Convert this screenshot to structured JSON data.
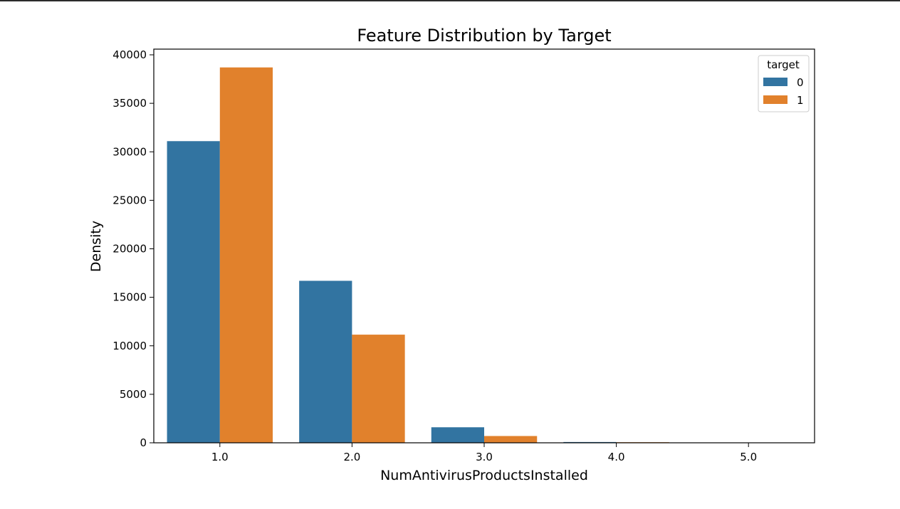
{
  "chart_data": {
    "type": "bar",
    "title": "Feature Distribution by Target",
    "xlabel": "NumAntivirusProductsInstalled",
    "ylabel": "Density",
    "categories": [
      "1.0",
      "2.0",
      "3.0",
      "4.0",
      "5.0"
    ],
    "series": [
      {
        "name": "0",
        "values": [
          31100,
          16700,
          1600,
          80,
          0
        ],
        "color": "#3274a1"
      },
      {
        "name": "1",
        "values": [
          38700,
          11150,
          700,
          60,
          0
        ],
        "color": "#e1812c"
      }
    ],
    "ylim": [
      0,
      40000
    ],
    "yticks": [
      0,
      5000,
      10000,
      15000,
      20000,
      25000,
      30000,
      35000,
      40000
    ],
    "grid": false,
    "legend": {
      "title": "target",
      "placement": "top-right"
    }
  }
}
